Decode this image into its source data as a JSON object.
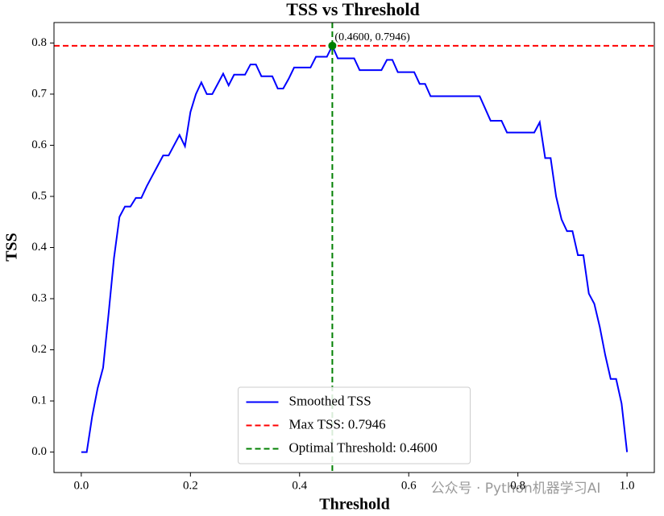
{
  "chart_data": {
    "type": "line",
    "title": "TSS vs Threshold",
    "x_label": "Threshold",
    "y_label": "TSS",
    "xlim": [
      -0.05,
      1.05
    ],
    "ylim": [
      -0.04,
      0.84
    ],
    "xticks": [
      {
        "value": 0,
        "label": "0.0"
      },
      0.2,
      0.4,
      0.6,
      0.8,
      {
        "value": 1,
        "label": "1.0"
      }
    ],
    "yticks": [
      {
        "value": 0,
        "label": "0.0"
      },
      0.1,
      0.2,
      0.3,
      0.4,
      0.5,
      0.6,
      0.7,
      0.8
    ],
    "legend": "lower center",
    "series": [
      {
        "name": "Smoothed TSS",
        "color": "#0000ff",
        "x": [
          0,
          0.01,
          0.02,
          0.03,
          0.04,
          0.05,
          0.06,
          0.07,
          0.08,
          0.09,
          0.1,
          0.11,
          0.12,
          0.13,
          0.14,
          0.15,
          0.16,
          0.17,
          0.18,
          0.19,
          0.2,
          0.21,
          0.22,
          0.23,
          0.24,
          0.25,
          0.26,
          0.27,
          0.28,
          0.29,
          0.3,
          0.31,
          0.32,
          0.33,
          0.34,
          0.35,
          0.36,
          0.37,
          0.38,
          0.39,
          0.4,
          0.41,
          0.42,
          0.43,
          0.44,
          0.45,
          0.46,
          0.47,
          0.48,
          0.49,
          0.5,
          0.51,
          0.52,
          0.53,
          0.54,
          0.55,
          0.56,
          0.57,
          0.58,
          0.59,
          0.6,
          0.61,
          0.62,
          0.63,
          0.64,
          0.65,
          0.66,
          0.67,
          0.68,
          0.69,
          0.7,
          0.71,
          0.72,
          0.73,
          0.74,
          0.75,
          0.76,
          0.77,
          0.78,
          0.79,
          0.8,
          0.81,
          0.82,
          0.83,
          0.84,
          0.85,
          0.86,
          0.87,
          0.88,
          0.89,
          0.9,
          0.91,
          0.92,
          0.93,
          0.94,
          0.95,
          0.96,
          0.97,
          0.98,
          0.99,
          1
        ],
        "y": [
          0,
          0,
          0.07,
          0.125,
          0.165,
          0.27,
          0.38,
          0.46,
          0.48,
          0.48,
          0.497,
          0.497,
          0.52,
          0.54,
          0.56,
          0.58,
          0.58,
          0.6,
          0.62,
          0.598,
          0.665,
          0.7,
          0.723,
          0.7,
          0.7,
          0.72,
          0.74,
          0.717,
          0.738,
          0.738,
          0.738,
          0.758,
          0.758,
          0.735,
          0.735,
          0.735,
          0.711,
          0.711,
          0.73,
          0.752,
          0.752,
          0.752,
          0.752,
          0.773,
          0.773,
          0.773,
          0.7946,
          0.77,
          0.77,
          0.77,
          0.77,
          0.747,
          0.747,
          0.747,
          0.747,
          0.747,
          0.767,
          0.767,
          0.743,
          0.743,
          0.743,
          0.743,
          0.72,
          0.72,
          0.696,
          0.696,
          0.696,
          0.696,
          0.696,
          0.696,
          0.696,
          0.696,
          0.696,
          0.696,
          0.672,
          0.648,
          0.648,
          0.648,
          0.625,
          0.625,
          0.625,
          0.625,
          0.625,
          0.625,
          0.645,
          0.575,
          0.575,
          0.5,
          0.455,
          0.432,
          0.432,
          0.385,
          0.385,
          0.31,
          0.29,
          0.245,
          0.19,
          0.143,
          0.143,
          0.095,
          0
        ]
      },
      {
        "name": "Max TSS: 0.7946",
        "color": "#ff0000",
        "hline": 0.7946
      },
      {
        "name": "Optimal Threshold: 0.4600",
        "color": "#008000",
        "vline": 0.46
      }
    ],
    "annotation": {
      "text": "(0.4600, 0.7946)",
      "color": "#008000"
    },
    "watermark": "公众号 · Python机器学习AI"
  }
}
